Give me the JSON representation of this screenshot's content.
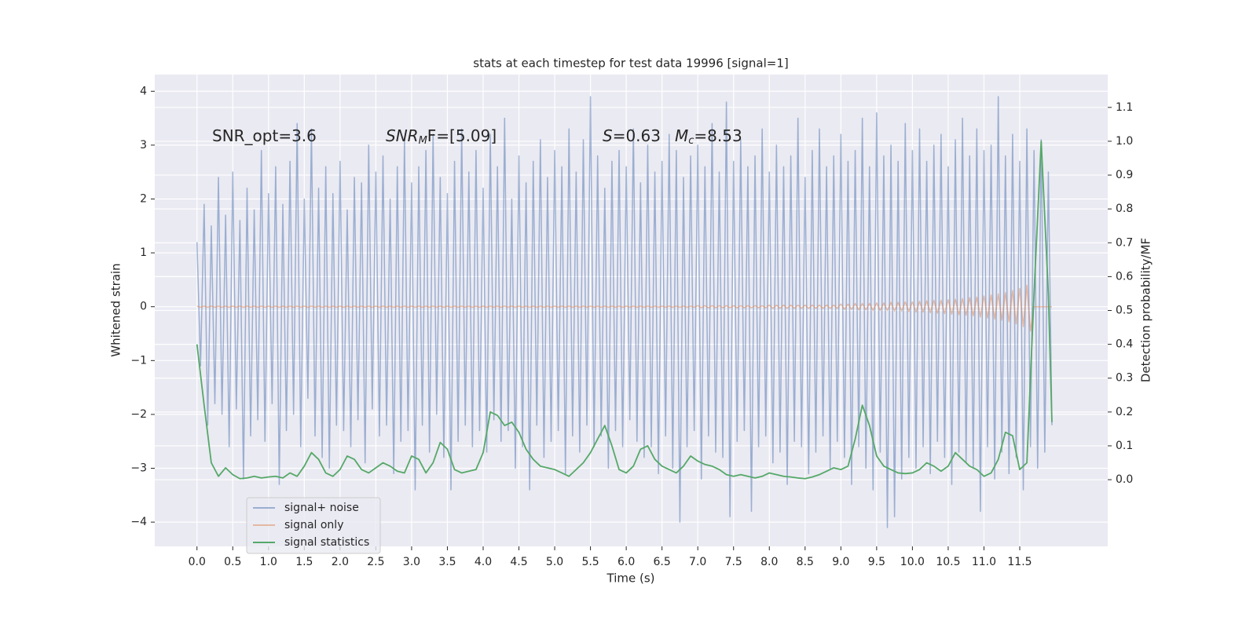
{
  "chart_data": {
    "type": "line",
    "title": "stats at each timestep for test data 19996 [signal=1]",
    "xlabel": "Time (s)",
    "ylabel": "Whitened strain",
    "y2label": "Detection probability/MF",
    "annotations": [
      {
        "text": "SNR_opt=3.6"
      },
      {
        "text": "SNR",
        "sub": "M",
        "tail": "F=[5.09]"
      },
      {
        "text": "S",
        "tail": "=0.63"
      },
      {
        "text": "M",
        "sub": "c",
        "tail": "=8.53"
      }
    ],
    "xlim": [
      -0.59,
      12.73
    ],
    "ylim": [
      -4.45,
      4.31
    ],
    "y2lim": [
      -0.197,
      1.197
    ],
    "xticks": [
      {
        "value": 0,
        "label": "0.0"
      },
      0.5,
      {
        "value": 1,
        "label": "1.0"
      },
      1.5,
      {
        "value": 2,
        "label": "2.0"
      },
      2.5,
      {
        "value": 3,
        "label": "3.0"
      },
      3.5,
      {
        "value": 4,
        "label": "4.0"
      },
      4.5,
      {
        "value": 5,
        "label": "5.0"
      },
      5.5,
      {
        "value": 6,
        "label": "6.0"
      },
      6.5,
      {
        "value": 7,
        "label": "7.0"
      },
      7.5,
      {
        "value": 8,
        "label": "8.0"
      },
      8.5,
      {
        "value": 9,
        "label": "9.0"
      },
      9.5,
      {
        "value": 10,
        "label": "10.0"
      },
      10.5,
      {
        "value": 11,
        "label": "11.0"
      },
      11.5
    ],
    "yticks": [
      {
        "value": -4,
        "label": "−4"
      },
      {
        "value": -3,
        "label": "−3"
      },
      {
        "value": -2,
        "label": "−2"
      },
      {
        "value": -1,
        "label": "−1"
      },
      0,
      1,
      2,
      3,
      4
    ],
    "y2ticks": [
      {
        "value": 0,
        "label": "0.0"
      },
      0.1,
      0.2,
      0.3,
      0.4,
      0.5,
      0.6,
      0.7,
      0.8,
      0.9,
      {
        "value": 1,
        "label": "1.0"
      },
      1.1
    ],
    "grid": true,
    "legend": "lower left",
    "x": [
      0,
      0.05,
      0.1,
      0.15,
      0.2,
      0.25,
      0.3,
      0.35,
      0.4,
      0.45,
      0.5,
      0.55,
      0.6,
      0.65,
      0.7,
      0.75,
      0.8,
      0.85,
      0.9,
      0.95,
      1,
      1.05,
      1.1,
      1.15,
      1.2,
      1.25,
      1.3,
      1.35,
      1.4,
      1.45,
      1.5,
      1.55,
      1.6,
      1.65,
      1.7,
      1.75,
      1.8,
      1.85,
      1.9,
      1.95,
      2,
      2.05,
      2.1,
      2.15,
      2.2,
      2.25,
      2.3,
      2.35,
      2.4,
      2.45,
      2.5,
      2.55,
      2.6,
      2.65,
      2.7,
      2.75,
      2.8,
      2.85,
      2.9,
      2.95,
      3,
      3.05,
      3.1,
      3.15,
      3.2,
      3.25,
      3.3,
      3.35,
      3.4,
      3.45,
      3.5,
      3.55,
      3.6,
      3.65,
      3.7,
      3.75,
      3.8,
      3.85,
      3.9,
      3.95,
      4,
      4.05,
      4.1,
      4.15,
      4.2,
      4.25,
      4.3,
      4.35,
      4.4,
      4.45,
      4.5,
      4.55,
      4.6,
      4.65,
      4.7,
      4.75,
      4.8,
      4.85,
      4.9,
      4.95,
      5,
      5.05,
      5.1,
      5.15,
      5.2,
      5.25,
      5.3,
      5.35,
      5.4,
      5.45,
      5.5,
      5.55,
      5.6,
      5.65,
      5.7,
      5.75,
      5.8,
      5.85,
      5.9,
      5.95,
      6,
      6.05,
      6.1,
      6.15,
      6.2,
      6.25,
      6.3,
      6.35,
      6.4,
      6.45,
      6.5,
      6.55,
      6.6,
      6.65,
      6.7,
      6.75,
      6.8,
      6.85,
      6.9,
      6.95,
      7,
      7.05,
      7.1,
      7.15,
      7.2,
      7.25,
      7.3,
      7.35,
      7.4,
      7.45,
      7.5,
      7.55,
      7.6,
      7.65,
      7.7,
      7.75,
      7.8,
      7.85,
      7.9,
      7.95,
      8,
      8.05,
      8.1,
      8.15,
      8.2,
      8.25,
      8.3,
      8.35,
      8.4,
      8.45,
      8.5,
      8.55,
      8.6,
      8.65,
      8.7,
      8.75,
      8.8,
      8.85,
      8.9,
      8.95,
      9,
      9.05,
      9.1,
      9.15,
      9.2,
      9.25,
      9.3,
      9.35,
      9.4,
      9.45,
      9.5,
      9.55,
      9.6,
      9.65,
      9.7,
      9.75,
      9.8,
      9.85,
      9.9,
      9.95,
      10,
      10.05,
      10.1,
      10.15,
      10.2,
      10.25,
      10.3,
      10.35,
      10.4,
      10.45,
      10.5,
      10.55,
      10.6,
      10.65,
      10.7,
      10.75,
      10.8,
      10.85,
      10.9,
      10.95,
      11,
      11.05,
      11.1,
      11.15,
      11.2,
      11.25,
      11.3,
      11.35,
      11.4,
      11.45,
      11.5,
      11.55,
      11.6,
      11.65,
      11.7,
      11.75,
      11.8,
      11.85,
      11.9,
      11.95
    ],
    "series": [
      {
        "name": "signal+ noise",
        "color": "#4c72b0",
        "opacity": 0.5,
        "values": [
          1.2,
          -1.1,
          1.9,
          -2.2,
          1.5,
          -1.8,
          2.4,
          -2.0,
          1.7,
          -2.6,
          2.5,
          -1.9,
          1.6,
          -3.2,
          2.2,
          -2.4,
          1.8,
          -2.1,
          2.9,
          -2.5,
          2.1,
          -1.8,
          2.6,
          -3.3,
          1.9,
          -2.3,
          2.7,
          -2.0,
          3.4,
          -2.6,
          2.0,
          -1.7,
          3.3,
          -2.4,
          2.2,
          -2.8,
          2.6,
          -3.0,
          2.1,
          -2.2,
          2.7,
          -2.3,
          1.8,
          -2.6,
          2.4,
          -2.1,
          2.3,
          -2.9,
          3.0,
          -1.9,
          2.5,
          -2.4,
          2.8,
          -2.2,
          2.0,
          -3.1,
          2.6,
          -2.5,
          3.1,
          -2.3,
          2.3,
          -3.4,
          2.6,
          -2.2,
          2.9,
          -2.7,
          3.2,
          -2.0,
          2.4,
          -2.8,
          2.1,
          -3.4,
          2.7,
          -2.5,
          3.3,
          -2.2,
          2.5,
          -2.6,
          2.9,
          -2.3,
          2.2,
          -2.7,
          3.2,
          -2.1,
          2.6,
          -2.5,
          3.5,
          -2.3,
          2.0,
          -3.0,
          2.8,
          -2.6,
          2.3,
          -3.4,
          2.7,
          -2.2,
          3.1,
          -2.8,
          2.4,
          -2.5,
          2.9,
          -2.3,
          2.6,
          -3.1,
          3.3,
          -2.4,
          2.5,
          -2.7,
          3.1,
          -2.2,
          3.9,
          -2.6,
          2.8,
          -2.4,
          2.2,
          -3.0,
          2.7,
          -2.3,
          2.9,
          -2.6,
          2.6,
          -2.1,
          3.3,
          -2.5,
          2.3,
          -2.8,
          3.0,
          -2.6,
          2.5,
          -3.1,
          2.7,
          -2.4,
          3.2,
          -3.0,
          2.9,
          -4.0,
          2.4,
          -2.6,
          2.8,
          -2.3,
          3.0,
          -3.2,
          2.6,
          -2.4,
          3.4,
          -2.7,
          2.5,
          -2.8,
          3.8,
          -3.9,
          2.7,
          -2.5,
          3.1,
          -2.3,
          2.6,
          -3.8,
          2.8,
          -2.6,
          3.3,
          -2.4,
          2.5,
          -2.9,
          3.0,
          -2.7,
          2.6,
          -3.3,
          2.8,
          -2.5,
          3.5,
          -2.6,
          2.4,
          -3.1,
          2.9,
          -2.7,
          3.3,
          -2.4,
          2.6,
          -3.0,
          2.8,
          -2.5,
          3.2,
          -2.8,
          2.7,
          -3.3,
          2.9,
          -2.6,
          3.5,
          -3.0,
          2.6,
          -3.4,
          3.6,
          -2.7,
          2.8,
          -4.1,
          3.0,
          -3.9,
          2.7,
          -3.2,
          3.4,
          -2.8,
          2.9,
          -3.0,
          3.3,
          -2.6,
          2.7,
          -3.1,
          3.0,
          -2.5,
          3.2,
          -2.8,
          2.6,
          -3.3,
          3.1,
          -2.7,
          3.5,
          -2.9,
          2.8,
          -3.0,
          3.3,
          -3.8,
          2.9,
          -2.6,
          3.0,
          -3.2,
          3.9,
          -2.7,
          2.8,
          -3.1,
          3.2,
          -2.8,
          2.7,
          -3.4,
          3.3,
          -2.6,
          2.9,
          -3.0,
          3.1,
          -2.7,
          2.5,
          -2.2
        ]
      },
      {
        "name": "signal only",
        "color": "#dd8452",
        "opacity": 0.5,
        "values": [
          0.01,
          -0.01,
          0.01,
          -0.01,
          0.01,
          -0.01,
          0.01,
          -0.01,
          0.01,
          -0.01,
          0.01,
          -0.01,
          0.01,
          -0.01,
          0.01,
          -0.01,
          0.01,
          -0.01,
          0.01,
          -0.01,
          0.01,
          -0.01,
          0.01,
          -0.01,
          0.01,
          -0.01,
          0.01,
          -0.01,
          0.01,
          -0.01,
          0.01,
          -0.01,
          0.01,
          -0.01,
          0.01,
          -0.01,
          0.01,
          -0.01,
          0.01,
          -0.01,
          0.01,
          -0.01,
          0.01,
          -0.01,
          0.01,
          -0.01,
          0.01,
          -0.01,
          0.01,
          -0.01,
          0.01,
          -0.01,
          0.01,
          -0.01,
          0.01,
          -0.01,
          0.01,
          -0.01,
          0.01,
          -0.01,
          0.01,
          -0.01,
          0.01,
          -0.01,
          0.01,
          -0.01,
          0.01,
          -0.01,
          0.01,
          -0.01,
          0.01,
          -0.01,
          0.01,
          -0.01,
          0.01,
          -0.01,
          0.01,
          -0.01,
          0.01,
          -0.01,
          0.01,
          -0.01,
          0.01,
          -0.01,
          0.01,
          -0.01,
          0.01,
          -0.01,
          0.01,
          -0.01,
          0.01,
          -0.01,
          0.01,
          -0.01,
          0.01,
          -0.01,
          0.01,
          -0.01,
          0.01,
          -0.01,
          0.01,
          -0.01,
          0.01,
          -0.01,
          0.01,
          -0.01,
          0.01,
          -0.01,
          0.01,
          -0.01,
          0.01,
          -0.01,
          0.01,
          -0.01,
          0.01,
          -0.01,
          0.01,
          -0.01,
          0.01,
          -0.01,
          0.01,
          -0.01,
          0.01,
          -0.01,
          0.01,
          -0.01,
          0.01,
          -0.01,
          0.01,
          -0.01,
          0.01,
          -0.01,
          0.01,
          -0.01,
          0.01,
          -0.01,
          0.01,
          -0.01,
          0.01,
          -0.01,
          0.02,
          -0.02,
          0.02,
          -0.02,
          0.02,
          -0.02,
          0.02,
          -0.02,
          0.02,
          -0.02,
          0.02,
          -0.02,
          0.02,
          -0.02,
          0.02,
          -0.02,
          0.02,
          -0.02,
          0.02,
          -0.02,
          0.03,
          -0.03,
          0.03,
          -0.03,
          0.03,
          -0.03,
          0.03,
          -0.03,
          0.03,
          -0.03,
          0.03,
          -0.03,
          0.03,
          -0.03,
          0.03,
          -0.03,
          0.03,
          -0.03,
          0.03,
          -0.03,
          0.05,
          -0.05,
          0.05,
          -0.05,
          0.06,
          -0.06,
          0.06,
          -0.06,
          0.06,
          -0.07,
          0.07,
          -0.07,
          0.07,
          -0.07,
          0.08,
          -0.08,
          0.08,
          -0.08,
          0.09,
          -0.09,
          0.09,
          -0.1,
          0.1,
          -0.1,
          0.11,
          -0.11,
          0.12,
          -0.12,
          0.12,
          -0.13,
          0.13,
          -0.14,
          0.14,
          -0.15,
          0.15,
          -0.16,
          0.17,
          -0.17,
          0.18,
          -0.19,
          0.2,
          -0.21,
          0.22,
          -0.23,
          0.24,
          -0.25,
          0.26,
          -0.28,
          0.3,
          -0.32,
          0.34,
          -0.37,
          0.4,
          -0.45,
          0,
          0,
          0,
          0,
          0,
          0
        ]
      },
      {
        "name": "signal statistics",
        "color": "#55a868",
        "axis": "y2",
        "x": [
          0,
          0.1,
          0.2,
          0.3,
          0.4,
          0.5,
          0.6,
          0.7,
          0.8,
          0.9,
          1,
          1.1,
          1.2,
          1.3,
          1.4,
          1.5,
          1.6,
          1.7,
          1.8,
          1.9,
          2,
          2.1,
          2.2,
          2.3,
          2.4,
          2.5,
          2.6,
          2.7,
          2.8,
          2.9,
          3,
          3.1,
          3.2,
          3.3,
          3.4,
          3.5,
          3.6,
          3.7,
          3.8,
          3.9,
          4,
          4.1,
          4.2,
          4.3,
          4.4,
          4.5,
          4.6,
          4.7,
          4.8,
          4.9,
          5,
          5.1,
          5.2,
          5.3,
          5.4,
          5.5,
          5.6,
          5.7,
          5.8,
          5.9,
          6,
          6.1,
          6.2,
          6.3,
          6.4,
          6.5,
          6.6,
          6.7,
          6.8,
          6.9,
          7,
          7.1,
          7.2,
          7.3,
          7.4,
          7.5,
          7.6,
          7.7,
          7.8,
          7.9,
          8,
          8.1,
          8.2,
          8.3,
          8.4,
          8.5,
          8.6,
          8.7,
          8.8,
          8.9,
          9,
          9.1,
          9.2,
          9.3,
          9.4,
          9.5,
          9.6,
          9.7,
          9.8,
          9.9,
          10,
          10.1,
          10.2,
          10.3,
          10.4,
          10.5,
          10.6,
          10.7,
          10.8,
          10.9,
          11,
          11.1,
          11.2,
          11.3,
          11.4,
          11.5,
          11.6,
          11.7,
          11.8,
          11.9,
          11.95
        ],
        "values": [
          0.4,
          0.22,
          0.05,
          0.01,
          0.035,
          0.015,
          0.003,
          0.005,
          0.01,
          0.005,
          0.008,
          0.01,
          0.005,
          0.02,
          0.01,
          0.04,
          0.08,
          0.06,
          0.02,
          0.01,
          0.03,
          0.07,
          0.06,
          0.03,
          0.02,
          0.035,
          0.05,
          0.04,
          0.025,
          0.02,
          0.07,
          0.06,
          0.02,
          0.05,
          0.11,
          0.09,
          0.03,
          0.02,
          0.025,
          0.03,
          0.08,
          0.2,
          0.19,
          0.16,
          0.17,
          0.14,
          0.09,
          0.06,
          0.04,
          0.035,
          0.03,
          0.02,
          0.01,
          0.03,
          0.05,
          0.08,
          0.12,
          0.16,
          0.1,
          0.03,
          0.02,
          0.04,
          0.09,
          0.1,
          0.06,
          0.04,
          0.03,
          0.02,
          0.04,
          0.07,
          0.055,
          0.045,
          0.04,
          0.03,
          0.015,
          0.01,
          0.015,
          0.01,
          0.005,
          0.01,
          0.02,
          0.015,
          0.01,
          0.008,
          0.005,
          0.003,
          0.008,
          0.015,
          0.025,
          0.035,
          0.03,
          0.04,
          0.12,
          0.22,
          0.16,
          0.07,
          0.04,
          0.03,
          0.02,
          0.018,
          0.02,
          0.03,
          0.05,
          0.04,
          0.025,
          0.04,
          0.08,
          0.06,
          0.04,
          0.03,
          0.01,
          0.02,
          0.06,
          0.14,
          0.13,
          0.03,
          0.05,
          0.55,
          1.0,
          0.55,
          0.17
        ]
      }
    ]
  }
}
